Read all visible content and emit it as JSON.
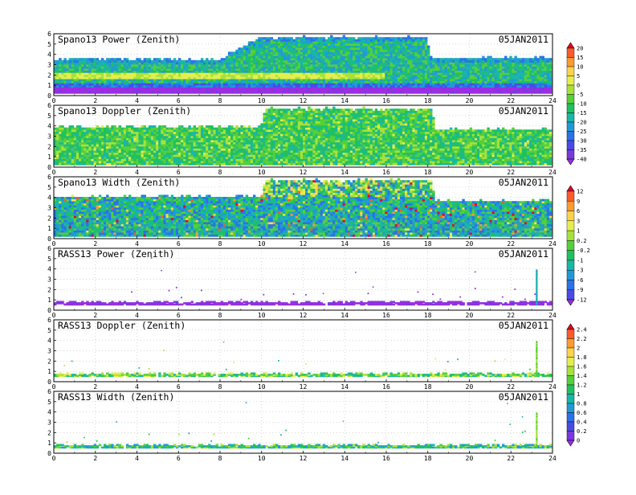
{
  "panels": [
    {
      "title": "Spano13 Power (Zenith)",
      "date": "05JAN2011",
      "palette": "power"
    },
    {
      "title": "Spano13 Doppler (Zenith)",
      "date": "05JAN2011",
      "palette": "doppler"
    },
    {
      "title": "Spano13 Width (Zenith)",
      "date": "05JAN2011",
      "palette": "width"
    },
    {
      "title": "RASS13 Power (Zenith)",
      "date": "05JAN2011",
      "palette": "rasspower"
    },
    {
      "title": "RASS13 Doppler (Zenith)",
      "date": "05JAN2011",
      "palette": "rassdoppler"
    },
    {
      "title": "RASS13 Width (Zenith)",
      "date": "05JAN2011",
      "palette": "rasswidth"
    }
  ],
  "x_ticks": [
    "0",
    "2",
    "4",
    "6",
    "8",
    "10",
    "12",
    "14",
    "16",
    "18",
    "20",
    "22",
    "24"
  ],
  "y_ticks": [
    "0",
    "1",
    "2",
    "3",
    "4",
    "5",
    "6"
  ],
  "colorbars": [
    {
      "name": "power-doppler",
      "labels": [
        "20",
        "15",
        "10",
        "5",
        "0",
        "-5",
        "-10",
        "-15",
        "-20",
        "-25",
        "-30",
        "-35",
        "-40"
      ],
      "colors": [
        "#e8002a",
        "#ff5a2a",
        "#ff9a30",
        "#ffd24a",
        "#e6ee4c",
        "#a7e23a",
        "#55cf3a",
        "#20c060",
        "#18b7a6",
        "#209ad7",
        "#2a72e8",
        "#4a4ae6",
        "#7a38e0",
        "#9a2ee2"
      ]
    },
    {
      "name": "width",
      "labels": [
        "12",
        "9",
        "6",
        "3",
        "1",
        "0.2",
        "-0.2",
        "-1",
        "-3",
        "-6",
        "-9",
        "-12"
      ],
      "colors": [
        "#e8002a",
        "#ff5a2a",
        "#ff9a30",
        "#ffd24a",
        "#e6ee4c",
        "#a7e23a",
        "#55cf3a",
        "#20c060",
        "#18b7a6",
        "#209ad7",
        "#2a72e8",
        "#4a4ae6",
        "#9a2ee2"
      ]
    },
    {
      "name": "rass",
      "labels": [
        "2.4",
        "2.2",
        "2",
        "1.8",
        "1.6",
        "1.4",
        "1.2",
        "1",
        "0.8",
        "0.6",
        "0.4",
        "0.2",
        "0"
      ],
      "colors": [
        "#e8002a",
        "#ff5a2a",
        "#ff9a30",
        "#ffd24a",
        "#e6ee4c",
        "#a7e23a",
        "#55cf3a",
        "#20c060",
        "#18b7a6",
        "#209ad7",
        "#2a72e8",
        "#4a4ae6",
        "#7a38e0",
        "#9a2ee2"
      ]
    }
  ],
  "chart_data": {
    "type": "heatmap",
    "x_range": [
      0,
      24
    ],
    "y_range": [
      0,
      6
    ],
    "grid": true,
    "panels": [
      {
        "title": "Spano13 Power (Zenith)",
        "coverage": "dense",
        "top_height_profile": [
          [
            0,
            3.8
          ],
          [
            8,
            3.8
          ],
          [
            10,
            5.9
          ],
          [
            18,
            5.9
          ],
          [
            18.2,
            3.9
          ],
          [
            24,
            3.9
          ]
        ],
        "dominant": "green/cyan, yellow band near 2 km, purple band near 0.7 km"
      },
      {
        "title": "Spano13 Doppler (Zenith)",
        "coverage": "dense",
        "top_height_profile": [
          [
            0,
            4.2
          ],
          [
            10,
            4.2
          ],
          [
            10.2,
            5.9
          ],
          [
            18.2,
            5.9
          ],
          [
            18.4,
            3.9
          ],
          [
            24,
            3.9
          ]
        ],
        "dominant": "green"
      },
      {
        "title": "Spano13 Width (Zenith)",
        "coverage": "dense",
        "top_height_profile": [
          [
            0,
            4.3
          ],
          [
            10,
            4.3
          ],
          [
            10.2,
            5.9
          ],
          [
            18.2,
            5.9
          ],
          [
            18.4,
            3.9
          ],
          [
            24,
            3.9
          ]
        ],
        "dominant": "cyan/green with yellow-red speckle"
      },
      {
        "title": "RASS13 Power (Zenith)",
        "coverage": "sparse",
        "band_height": 0.6,
        "spike_x": 23.2
      },
      {
        "title": "RASS13 Doppler (Zenith)",
        "coverage": "sparse",
        "band_height": 0.6,
        "spike_x": 23.2
      },
      {
        "title": "RASS13 Width (Zenith)",
        "coverage": "sparse",
        "band_height": 0.6,
        "spike_x": 23.2
      }
    ]
  }
}
